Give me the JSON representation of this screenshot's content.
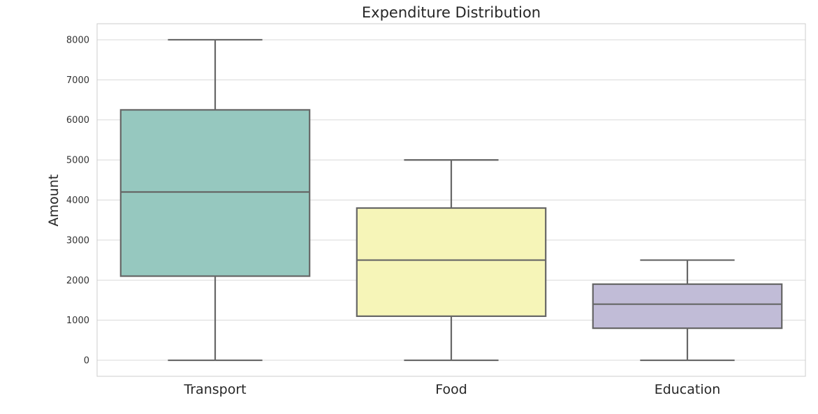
{
  "chart_data": {
    "type": "box",
    "title": "Expenditure Distribution",
    "xlabel": "",
    "ylabel": "Amount",
    "ylim": [
      -400,
      8400
    ],
    "yticks": [
      0,
      1000,
      2000,
      3000,
      4000,
      5000,
      6000,
      7000,
      8000
    ],
    "grid": true,
    "categories": [
      "Transport",
      "Food",
      "Education"
    ],
    "boxes": [
      {
        "category": "Transport",
        "min": 0,
        "q1": 2100,
        "median": 4200,
        "q3": 6250,
        "max": 8000,
        "color": "#96c8bf"
      },
      {
        "category": "Food",
        "min": 0,
        "q1": 1100,
        "median": 2500,
        "q3": 3800,
        "max": 5000,
        "color": "#f6f5b8"
      },
      {
        "category": "Education",
        "min": 0,
        "q1": 800,
        "median": 1400,
        "q3": 1900,
        "max": 2500,
        "color": "#c1bcd7"
      }
    ],
    "line_color": "#666666",
    "grid_color": "#d9d9d9"
  }
}
